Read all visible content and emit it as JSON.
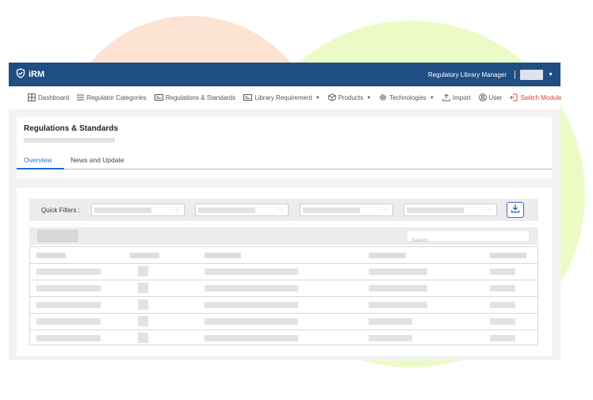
{
  "app": {
    "brand": "iRM",
    "module_name": "Regulatory Library Manager"
  },
  "nav": [
    {
      "name": "dashboard",
      "label": "Dashboard",
      "icon": "dashboard-icon",
      "caret": false
    },
    {
      "name": "regulator-categories",
      "label": "Regulator Categories",
      "icon": "list-icon",
      "caret": false
    },
    {
      "name": "regulations-standards",
      "label": "Regulations & Standards",
      "icon": "id-card-icon",
      "caret": false
    },
    {
      "name": "library-requirement",
      "label": "Library Requirement",
      "icon": "id-card-icon",
      "caret": true
    },
    {
      "name": "products",
      "label": "Products",
      "icon": "box-icon",
      "caret": true
    },
    {
      "name": "technologies",
      "label": "Technologies",
      "icon": "gear-icon",
      "caret": true
    },
    {
      "name": "import",
      "label": "Import",
      "icon": "upload-icon",
      "caret": false
    },
    {
      "name": "user",
      "label": "User",
      "icon": "user-icon",
      "caret": false
    },
    {
      "name": "switch-module",
      "label": "Switch Module",
      "icon": "switch-icon",
      "caret": false
    }
  ],
  "page": {
    "title": "Regulations & Standards"
  },
  "tabs": {
    "overview": "Overview",
    "news": "News and  Update",
    "active": "overview"
  },
  "filters": {
    "label": "Quick Filters :"
  },
  "search": {
    "placeholder": "Search"
  },
  "colors": {
    "header": "#1f4e82",
    "accent": "#1f6fd1",
    "switch_module": "#e53935"
  }
}
